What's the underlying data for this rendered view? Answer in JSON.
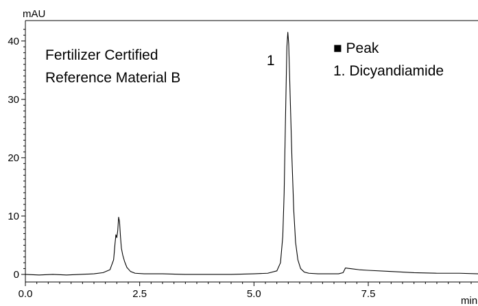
{
  "chart_data": {
    "type": "line",
    "title": "",
    "xlabel": "min",
    "ylabel": "mAU",
    "xlim": [
      0,
      9.9
    ],
    "ylim": [
      -1.3,
      43.5
    ],
    "x_ticks": [
      0.0,
      2.5,
      5.0,
      7.5
    ],
    "x_tick_labels": [
      "0.0",
      "2.5",
      "5.0",
      "7.5"
    ],
    "y_ticks": [
      0,
      10,
      20,
      30,
      40
    ],
    "y_tick_labels": [
      "0",
      "10",
      "20",
      "30",
      "40"
    ],
    "grid": false,
    "annotation": {
      "line1": "Fertilizer Certified",
      "line2": "Reference Material B"
    },
    "legend": {
      "title": "■ Peak",
      "entry": "1. Dicyandiamide",
      "placement": "top-right"
    },
    "peaks": [
      {
        "label": "1",
        "x": 5.74,
        "y": 41.5
      }
    ],
    "series": [
      {
        "x": [
          0.0,
          0.3,
          0.6,
          0.9,
          1.2,
          1.5,
          1.7,
          1.85,
          1.93,
          1.96,
          1.98,
          2.0,
          2.02,
          2.04,
          2.06,
          2.08,
          2.1,
          2.13,
          2.17,
          2.22,
          2.3,
          2.4,
          2.6,
          3.0,
          3.5,
          4.0,
          4.5,
          5.0,
          5.3,
          5.5,
          5.58,
          5.63,
          5.66,
          5.69,
          5.72,
          5.74,
          5.76,
          5.79,
          5.83,
          5.87,
          5.91,
          5.96,
          6.02,
          6.1,
          6.2,
          6.4,
          6.6,
          6.85,
          6.95,
          7.0,
          7.1,
          7.3,
          7.5,
          8.0,
          8.5,
          9.0,
          9.5,
          9.9
        ],
        "y": [
          0.0,
          -0.1,
          0.0,
          -0.1,
          0.0,
          0.1,
          0.3,
          0.8,
          2.5,
          5.2,
          6.8,
          6.3,
          7.5,
          9.8,
          9.0,
          6.5,
          4.5,
          3.3,
          2.2,
          1.2,
          0.5,
          0.2,
          0.1,
          0.1,
          0.0,
          0.0,
          0.0,
          0.1,
          0.2,
          0.6,
          2.0,
          6.5,
          14.0,
          27.0,
          39.0,
          41.5,
          39.5,
          31.0,
          20.0,
          11.0,
          5.5,
          2.5,
          1.0,
          0.4,
          0.2,
          0.1,
          0.1,
          0.1,
          0.3,
          1.1,
          1.0,
          0.8,
          0.7,
          0.5,
          0.3,
          0.2,
          0.2,
          0.1
        ]
      }
    ]
  }
}
